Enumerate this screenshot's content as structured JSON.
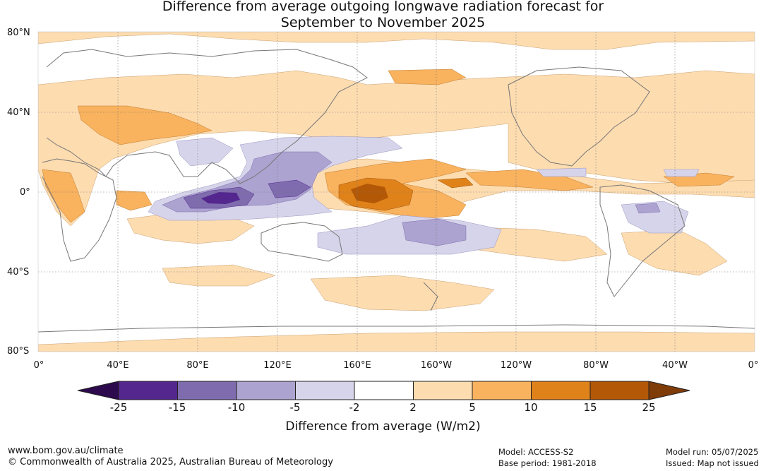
{
  "title": {
    "line1": "Difference from average outgoing longwave radiation forecast for",
    "line2": "September to November 2025"
  },
  "lat_labels": [
    "80°N",
    "40°N",
    "0°",
    "40°S",
    "80°S"
  ],
  "lon_labels": [
    "0°",
    "40°E",
    "80°E",
    "120°E",
    "160°E",
    "160°W",
    "120°W",
    "80°W",
    "40°W",
    "0°"
  ],
  "colorbar": {
    "title": "Difference from average (W/m2)",
    "tick_labels": [
      "-25",
      "-15",
      "-10",
      "-5",
      "-2",
      "2",
      "5",
      "10",
      "15",
      "25"
    ],
    "colors": [
      "#2d0a4e",
      "#54278f",
      "#7f6cae",
      "#aca3d0",
      "#d6d4ea",
      "#ffffff",
      "#fddcb0",
      "#f9b25e",
      "#e0821a",
      "#b35806",
      "#7f3b08"
    ]
  },
  "footer": {
    "url": "www.bom.gov.au/climate",
    "copyright": "© Commonwealth of Australia 2025, Australian Bureau of Meteorology",
    "model": "Model: ACCESS-S2",
    "base_period": "Base period: 1981-2018",
    "model_run": "Model run: 05/07/2025",
    "issued": "Issued: Map not issued"
  }
}
